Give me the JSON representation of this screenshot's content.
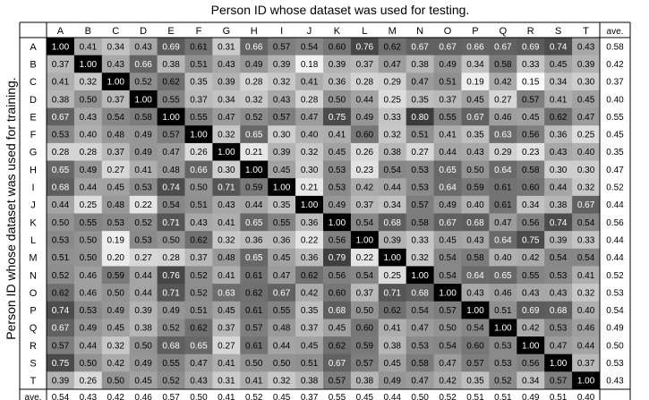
{
  "chart_data": {
    "type": "heatmap",
    "title": "Person ID whose dataset was used for testing.",
    "ylabel": "Person ID whose dataset was used for training.",
    "categories": [
      "A",
      "B",
      "C",
      "D",
      "E",
      "F",
      "G",
      "H",
      "I",
      "J",
      "K",
      "L",
      "M",
      "N",
      "O",
      "P",
      "Q",
      "R",
      "S",
      "T"
    ],
    "row_categories": [
      "A",
      "B",
      "C",
      "D",
      "E",
      "F",
      "G",
      "H",
      "I",
      "J",
      "K",
      "L",
      "M",
      "N",
      "O",
      "P",
      "Q",
      "R",
      "S",
      "T"
    ],
    "average_label": "ave.",
    "values": [
      [
        1.0,
        0.41,
        0.34,
        0.43,
        0.69,
        0.61,
        0.31,
        0.66,
        0.57,
        0.54,
        0.6,
        0.76,
        0.62,
        0.67,
        0.67,
        0.66,
        0.67,
        0.69,
        0.74,
        0.43
      ],
      [
        0.37,
        1.0,
        0.43,
        0.66,
        0.38,
        0.51,
        0.43,
        0.49,
        0.39,
        0.18,
        0.39,
        0.37,
        0.47,
        0.38,
        0.49,
        0.34,
        0.58,
        0.33,
        0.45,
        0.39
      ],
      [
        0.41,
        0.32,
        1.0,
        0.52,
        0.62,
        0.35,
        0.39,
        0.28,
        0.32,
        0.41,
        0.36,
        0.28,
        0.29,
        0.47,
        0.51,
        0.19,
        0.42,
        0.15,
        0.34,
        0.3
      ],
      [
        0.38,
        0.5,
        0.37,
        1.0,
        0.55,
        0.37,
        0.34,
        0.32,
        0.43,
        0.28,
        0.5,
        0.44,
        0.25,
        0.35,
        0.37,
        0.45,
        0.27,
        0.57,
        0.41,
        0.45
      ],
      [
        0.67,
        0.43,
        0.54,
        0.58,
        1.0,
        0.55,
        0.47,
        0.52,
        0.57,
        0.47,
        0.75,
        0.49,
        0.33,
        0.8,
        0.55,
        0.67,
        0.46,
        0.45,
        0.62,
        0.47
      ],
      [
        0.53,
        0.4,
        0.48,
        0.49,
        0.57,
        1.0,
        0.32,
        0.65,
        0.3,
        0.4,
        0.41,
        0.6,
        0.32,
        0.51,
        0.41,
        0.35,
        0.63,
        0.56,
        0.36,
        0.25
      ],
      [
        0.28,
        0.28,
        0.37,
        0.49,
        0.47,
        0.26,
        1.0,
        0.21,
        0.39,
        0.32,
        0.45,
        0.26,
        0.38,
        0.27,
        0.44,
        0.43,
        0.29,
        0.23,
        0.43,
        0.4
      ],
      [
        0.65,
        0.49,
        0.27,
        0.41,
        0.48,
        0.66,
        0.3,
        1.0,
        0.45,
        0.3,
        0.53,
        0.23,
        0.54,
        0.53,
        0.65,
        0.5,
        0.64,
        0.58,
        0.3,
        0.3
      ],
      [
        0.68,
        0.44,
        0.45,
        0.53,
        0.74,
        0.5,
        0.71,
        0.59,
        1.0,
        0.21,
        0.53,
        0.42,
        0.44,
        0.53,
        0.64,
        0.59,
        0.61,
        0.6,
        0.44,
        0.32
      ],
      [
        0.44,
        0.25,
        0.48,
        0.22,
        0.54,
        0.51,
        0.43,
        0.44,
        0.35,
        1.0,
        0.49,
        0.37,
        0.34,
        0.57,
        0.49,
        0.4,
        0.61,
        0.34,
        0.38,
        0.67
      ],
      [
        0.5,
        0.55,
        0.53,
        0.52,
        0.71,
        0.43,
        0.41,
        0.65,
        0.55,
        0.36,
        1.0,
        0.54,
        0.68,
        0.58,
        0.67,
        0.68,
        0.47,
        0.56,
        0.74,
        0.54
      ],
      [
        0.53,
        0.5,
        0.19,
        0.53,
        0.5,
        0.62,
        0.32,
        0.36,
        0.36,
        0.22,
        0.56,
        1.0,
        0.39,
        0.33,
        0.45,
        0.43,
        0.64,
        0.75,
        0.39,
        0.33
      ],
      [
        0.51,
        0.5,
        0.2,
        0.27,
        0.28,
        0.37,
        0.48,
        0.65,
        0.45,
        0.36,
        0.79,
        0.22,
        1.0,
        0.32,
        0.54,
        0.58,
        0.4,
        0.42,
        0.54,
        0.54
      ],
      [
        0.52,
        0.46,
        0.59,
        0.44,
        0.76,
        0.52,
        0.41,
        0.61,
        0.47,
        0.62,
        0.56,
        0.54,
        0.25,
        1.0,
        0.54,
        0.64,
        0.65,
        0.55,
        0.53,
        0.41
      ],
      [
        0.62,
        0.46,
        0.5,
        0.44,
        0.71,
        0.52,
        0.63,
        0.62,
        0.67,
        0.42,
        0.6,
        0.37,
        0.71,
        0.68,
        1.0,
        0.43,
        0.46,
        0.43,
        0.43,
        0.32
      ],
      [
        0.74,
        0.53,
        0.49,
        0.39,
        0.49,
        0.51,
        0.45,
        0.61,
        0.55,
        0.35,
        0.68,
        0.5,
        0.62,
        0.54,
        0.57,
        1.0,
        0.51,
        0.69,
        0.68,
        0.4
      ],
      [
        0.67,
        0.49,
        0.45,
        0.38,
        0.52,
        0.62,
        0.37,
        0.57,
        0.48,
        0.37,
        0.45,
        0.6,
        0.41,
        0.47,
        0.5,
        0.54,
        1.0,
        0.42,
        0.53,
        0.46
      ],
      [
        0.57,
        0.44,
        0.32,
        0.5,
        0.68,
        0.65,
        0.27,
        0.61,
        0.44,
        0.45,
        0.62,
        0.59,
        0.38,
        0.53,
        0.54,
        0.6,
        0.53,
        1.0,
        0.47,
        0.44
      ],
      [
        0.75,
        0.5,
        0.42,
        0.49,
        0.55,
        0.47,
        0.41,
        0.5,
        0.5,
        0.51,
        0.67,
        0.57,
        0.45,
        0.58,
        0.47,
        0.57,
        0.53,
        0.56,
        1.0,
        0.37
      ],
      [
        0.39,
        0.26,
        0.5,
        0.45,
        0.52,
        0.43,
        0.31,
        0.41,
        0.32,
        0.38,
        0.57,
        0.38,
        0.49,
        0.47,
        0.42,
        0.35,
        0.52,
        0.34,
        0.57,
        1.0
      ]
    ],
    "row_averages": [
      0.58,
      0.42,
      0.37,
      0.4,
      0.55,
      0.45,
      0.35,
      0.47,
      0.52,
      0.44,
      0.56,
      0.44,
      0.44,
      0.52,
      0.53,
      0.54,
      0.49,
      0.5,
      0.53,
      0.43
    ],
    "column_averages": [
      0.54,
      0.43,
      0.42,
      0.46,
      0.57,
      0.5,
      0.41,
      0.52,
      0.45,
      0.37,
      0.55,
      0.45,
      0.44,
      0.5,
      0.52,
      0.51,
      0.51,
      0.49,
      0.51,
      0.4
    ],
    "color_scale": {
      "low": "#ffffff",
      "high": "#000000",
      "domain": [
        0.15,
        1.0
      ]
    }
  }
}
